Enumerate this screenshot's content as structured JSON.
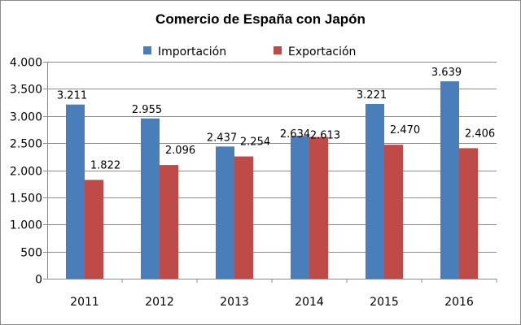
{
  "chart_data": {
    "type": "bar",
    "title": "Comercio de España con Japón",
    "categories": [
      "2011",
      "2012",
      "2013",
      "2014",
      "2015",
      "2016"
    ],
    "series": [
      {
        "name": "Importación",
        "color": "#4a7ebb",
        "values": [
          3211,
          2955,
          2437,
          2634,
          3221,
          3639
        ],
        "labels": [
          "3.211",
          "2.955",
          "2.437",
          "2.634",
          "3.221",
          "3.639"
        ]
      },
      {
        "name": "Exportación",
        "color": "#be4b48",
        "values": [
          1822,
          2096,
          2254,
          2613,
          2470,
          2406
        ],
        "labels": [
          "1.822",
          "2.096",
          "2.254",
          "2.613",
          "2.470",
          "2.406"
        ]
      }
    ],
    "ylim": [
      0,
      4000
    ],
    "yticks": [
      0,
      500,
      1000,
      1500,
      2000,
      2500,
      3000,
      3500,
      4000
    ],
    "yticklabels": [
      "0",
      "500",
      "1.000",
      "1.500",
      "2.000",
      "2.500",
      "3.000",
      "3.500",
      "4.000"
    ],
    "grid": true,
    "legend": "top"
  }
}
